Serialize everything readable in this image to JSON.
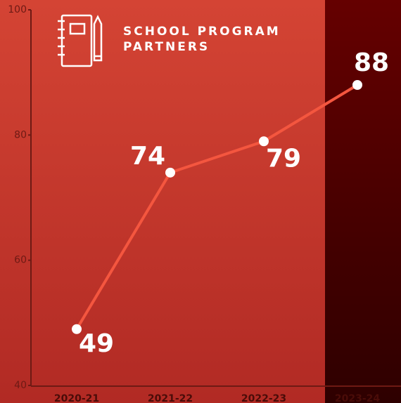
{
  "chart_data": {
    "type": "line",
    "title": "SCHOOL PROGRAM PARTNERS",
    "categories": [
      "2020-21",
      "2021-22",
      "2022-23",
      "2023-24"
    ],
    "values": [
      49,
      74,
      79,
      88
    ],
    "color": "#f4563f",
    "ylim": [
      40,
      100
    ],
    "yticks": [
      40,
      60,
      80,
      100
    ]
  }
}
